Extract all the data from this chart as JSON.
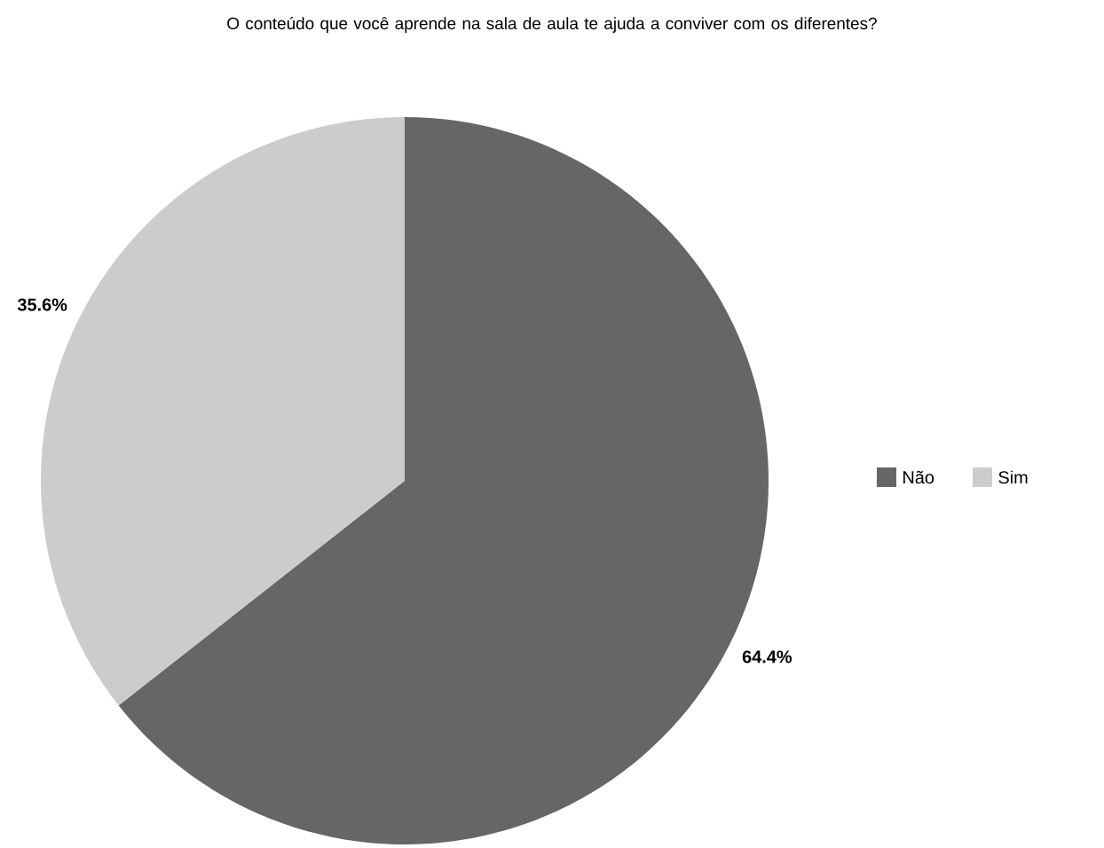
{
  "chart_data": {
    "type": "pie",
    "title": "O conteúdo que você aprende na sala de aula te ajuda a conviver com os diferentes?",
    "categories": [
      "Não",
      "Sim"
    ],
    "values": [
      64.4,
      35.6
    ],
    "colors": [
      "#666666",
      "#cccccc"
    ],
    "value_labels": [
      "64.4%",
      "35.6%"
    ],
    "legend": "right"
  }
}
